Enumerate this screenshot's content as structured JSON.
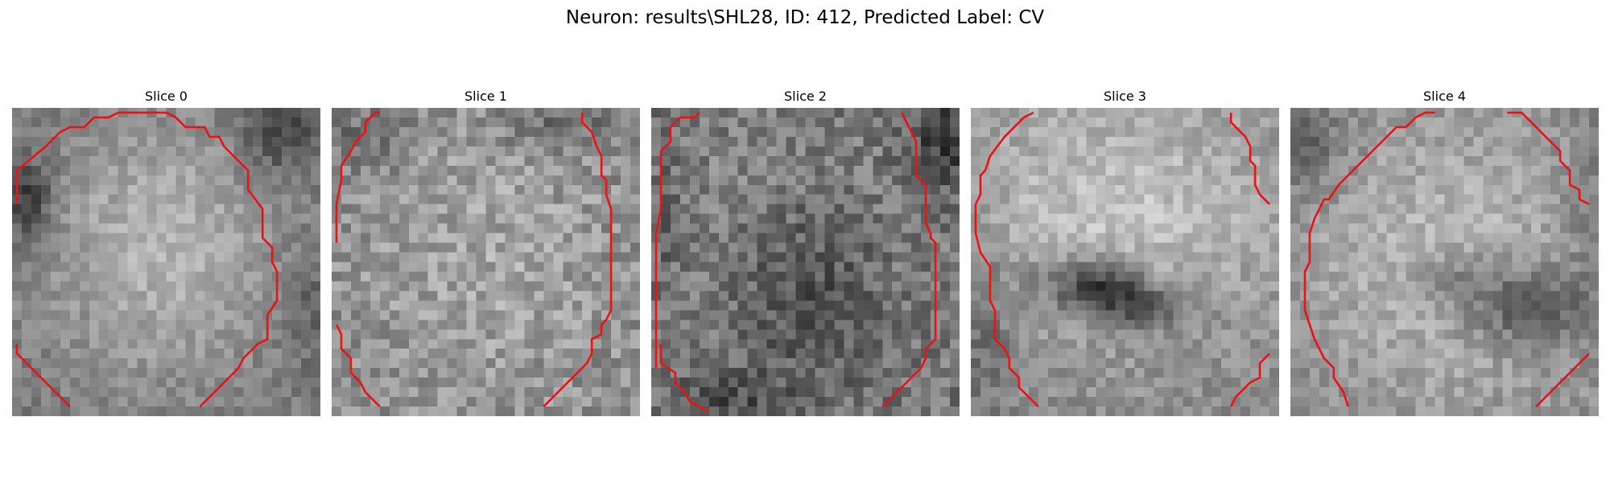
{
  "figure": {
    "title": "Neuron: results\\SHL28, ID: 412, Predicted Label: CV",
    "contour_color": "#e81416"
  },
  "panels": [
    {
      "title": "Slice 0"
    },
    {
      "title": "Slice 1"
    },
    {
      "title": "Slice 2"
    },
    {
      "title": "Slice 3"
    },
    {
      "title": "Slice 4"
    }
  ]
}
